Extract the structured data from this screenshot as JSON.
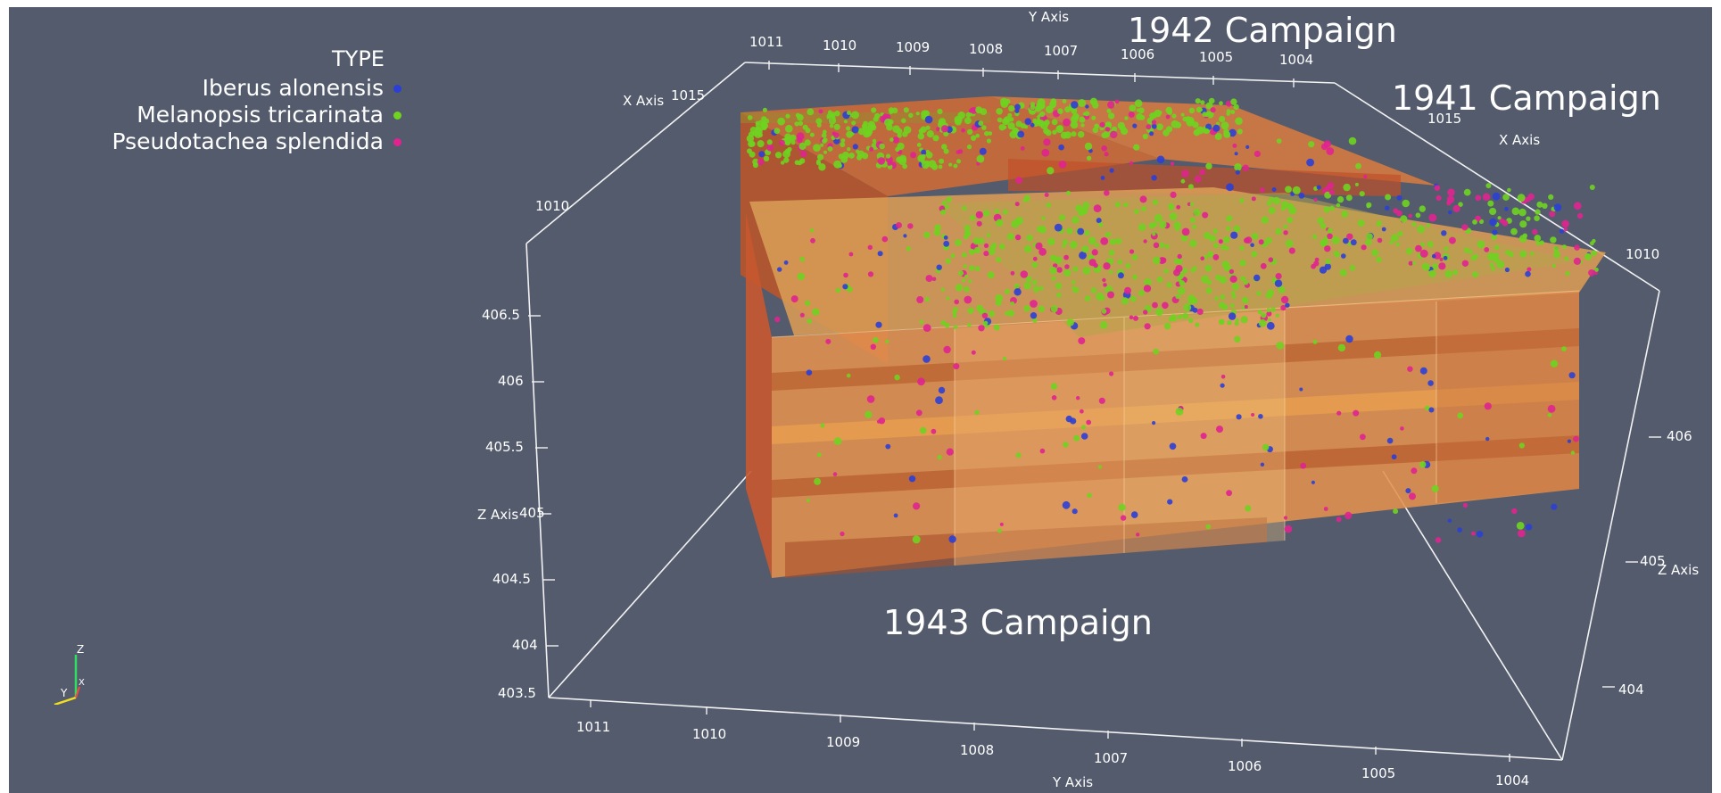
{
  "legend": {
    "title": "TYPE",
    "items": [
      {
        "label": "Iberus alonensis",
        "color": "#2b3fd6"
      },
      {
        "label": "Melanopsis tricarinata",
        "color": "#6fd320"
      },
      {
        "label": "Pseudotachea splendida",
        "color": "#e0238f"
      }
    ]
  },
  "campaigns": {
    "c1942": "1942 Campaign",
    "c1941": "1941 Campaign",
    "c1943": "1943 Campaign"
  },
  "axes": {
    "y_axis_title": "Y Axis",
    "x_axis_title": "X Axis",
    "z_axis_title": "Z Axis",
    "top_y_ticks": [
      "1011",
      "1010",
      "1009",
      "1008",
      "1007",
      "1006",
      "1005",
      "1004"
    ],
    "bottom_y_ticks": [
      "1011",
      "1010",
      "1009",
      "1008",
      "1007",
      "1006",
      "1005",
      "1004"
    ],
    "left_x_ticks": [
      "1015",
      "1010"
    ],
    "right_x_ticks": [
      "1015",
      "1010"
    ],
    "left_z_ticks": [
      "406.5",
      "406",
      "405.5",
      "405",
      "404.5",
      "404",
      "403.5"
    ],
    "right_z_ticks": [
      "406",
      "405",
      "404"
    ]
  },
  "orientation": {
    "x": "X",
    "y": "Y",
    "z": "Z"
  },
  "colors": {
    "background": "#535b6d",
    "axis_line": "#f2f2f2",
    "orient_x": "#ff4444",
    "orient_y": "#f0e020",
    "orient_z": "#30e060"
  }
}
